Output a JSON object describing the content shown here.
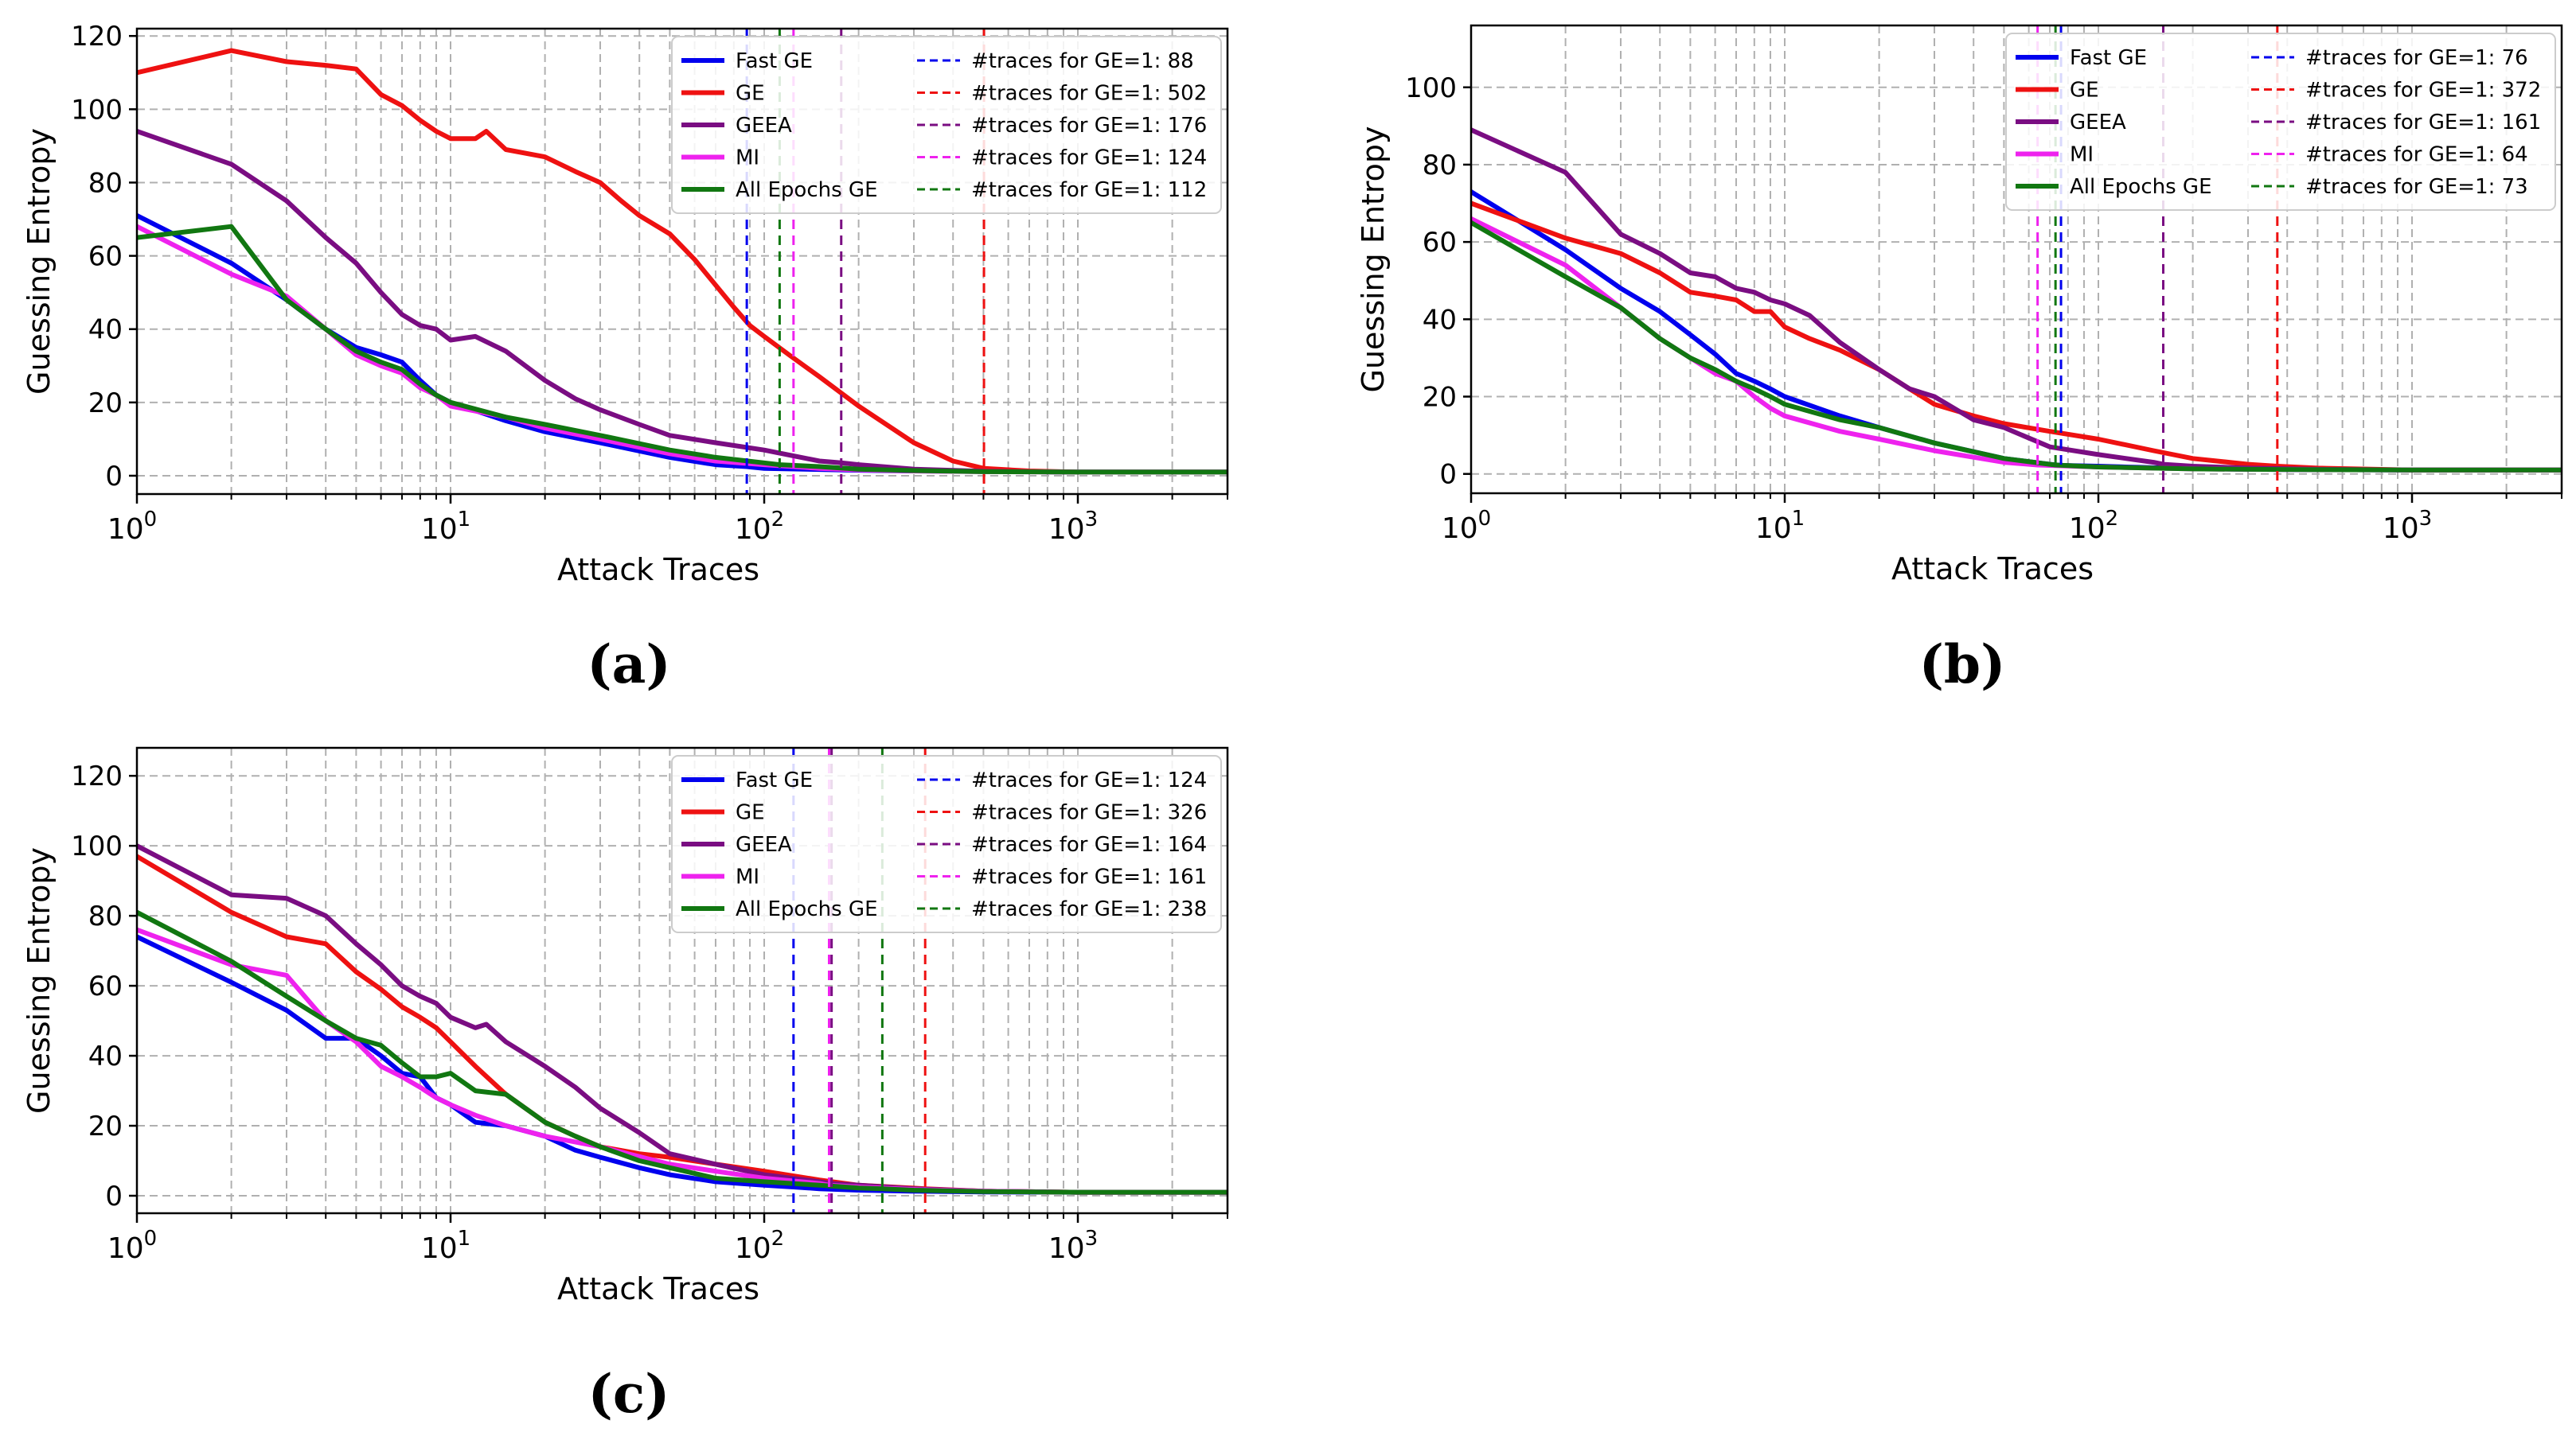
{
  "chart_data": [
    {
      "panel_label": "(a)",
      "type": "line",
      "xscale": "log",
      "xlim": [
        1,
        3000
      ],
      "ylim": [
        -5,
        122
      ],
      "xlabel": "Attack Traces",
      "ylabel": "Guessing Entropy",
      "yticks": [
        0,
        20,
        40,
        60,
        80,
        100,
        120
      ],
      "grid": true,
      "legend_position": "top-right",
      "series": [
        {
          "name": "Fast GE",
          "color": "#0000ee",
          "x": [
            1,
            2,
            3,
            4,
            5,
            6,
            7,
            8,
            9,
            10,
            15,
            20,
            30,
            50,
            70,
            88,
            100,
            150,
            200,
            300,
            500,
            1000,
            3000
          ],
          "y": [
            71,
            58,
            48,
            40,
            35,
            33,
            31,
            26,
            22,
            20,
            15,
            12,
            9,
            5,
            3,
            2.5,
            2,
            1.7,
            1.5,
            1.3,
            1.2,
            1,
            1
          ]
        },
        {
          "name": "GE",
          "color": "#ee1111",
          "x": [
            1,
            2,
            3,
            4,
            5,
            6,
            7,
            8,
            9,
            10,
            12,
            13,
            15,
            20,
            25,
            30,
            35,
            40,
            50,
            60,
            70,
            80,
            90,
            100,
            120,
            150,
            200,
            300,
            400,
            502,
            700,
            1000,
            3000
          ],
          "y": [
            110,
            116,
            113,
            112,
            111,
            104,
            101,
            97,
            94,
            92,
            92,
            94,
            89,
            87,
            83,
            80,
            75,
            71,
            66,
            59,
            52,
            46,
            41,
            38,
            33,
            27,
            19,
            9,
            4,
            2,
            1.3,
            1,
            1
          ]
        },
        {
          "name": "GEEA",
          "color": "#7a0d82",
          "x": [
            1,
            2,
            3,
            4,
            5,
            6,
            7,
            8,
            9,
            10,
            12,
            15,
            20,
            25,
            30,
            40,
            50,
            70,
            100,
            150,
            176,
            200,
            300,
            500,
            1000,
            3000
          ],
          "y": [
            94,
            85,
            75,
            65,
            58,
            50,
            44,
            41,
            40,
            37,
            38,
            34,
            26,
            21,
            18,
            14,
            11,
            9,
            7,
            4,
            3.5,
            3,
            1.8,
            1.2,
            1,
            1
          ]
        },
        {
          "name": "MI",
          "color": "#ee22ee",
          "x": [
            1,
            2,
            3,
            4,
            5,
            6,
            7,
            8,
            9,
            10,
            15,
            20,
            30,
            50,
            70,
            100,
            124,
            150,
            200,
            300,
            500,
            1000,
            3000
          ],
          "y": [
            68,
            55,
            49,
            40,
            33,
            30,
            28,
            24,
            22,
            19,
            16,
            13,
            10,
            6,
            4,
            3,
            2.5,
            2,
            1.6,
            1.3,
            1.1,
            1,
            1
          ]
        },
        {
          "name": "All Epochs GE",
          "color": "#117711",
          "x": [
            1,
            2,
            3,
            4,
            5,
            6,
            7,
            8,
            9,
            10,
            15,
            20,
            30,
            50,
            70,
            100,
            112,
            150,
            200,
            300,
            500,
            1000,
            3000
          ],
          "y": [
            65,
            68,
            48,
            40,
            34,
            31,
            29,
            25,
            22,
            20,
            16,
            14,
            11,
            7,
            5,
            3.5,
            3,
            2.5,
            1.8,
            1.4,
            1.1,
            1,
            1
          ]
        }
      ],
      "vlines": [
        {
          "label": "#traces for GE=1: 88",
          "x": 88,
          "color": "#0000ee"
        },
        {
          "label": "#traces for GE=1: 502",
          "x": 502,
          "color": "#ee1111"
        },
        {
          "label": "#traces for GE=1: 176",
          "x": 176,
          "color": "#7a0d82"
        },
        {
          "label": "#traces for GE=1: 124",
          "x": 124,
          "color": "#ee22ee"
        },
        {
          "label": "#traces for GE=1: 112",
          "x": 112,
          "color": "#117711"
        }
      ]
    },
    {
      "panel_label": "(b)",
      "type": "line",
      "xscale": "log",
      "xlim": [
        1,
        3000
      ],
      "ylim": [
        -5,
        116
      ],
      "xlabel": "Attack Traces",
      "ylabel": "Guessing Entropy",
      "yticks": [
        0,
        20,
        40,
        60,
        80,
        100
      ],
      "grid": true,
      "legend_position": "top-right",
      "series": [
        {
          "name": "Fast GE",
          "color": "#0000ee",
          "x": [
            1,
            2,
            3,
            4,
            5,
            6,
            7,
            8,
            9,
            10,
            15,
            20,
            30,
            50,
            70,
            76,
            100,
            150,
            200,
            300,
            500,
            1000,
            3000
          ],
          "y": [
            73,
            58,
            48,
            42,
            36,
            31,
            26,
            24,
            22,
            20,
            15,
            12,
            8,
            4,
            2.5,
            2.2,
            2,
            1.6,
            1.4,
            1.2,
            1.1,
            1,
            1
          ]
        },
        {
          "name": "GE",
          "color": "#ee1111",
          "x": [
            1,
            2,
            3,
            4,
            5,
            6,
            7,
            8,
            9,
            10,
            12,
            15,
            20,
            25,
            30,
            40,
            50,
            70,
            100,
            150,
            200,
            300,
            372,
            500,
            1000,
            3000
          ],
          "y": [
            70,
            61,
            57,
            52,
            47,
            46,
            45,
            42,
            42,
            38,
            35,
            32,
            27,
            22,
            18,
            15,
            13,
            11,
            9,
            6,
            4,
            2.5,
            2,
            1.5,
            1,
            1
          ]
        },
        {
          "name": "GEEA",
          "color": "#7a0d82",
          "x": [
            1,
            2,
            3,
            4,
            5,
            6,
            7,
            8,
            9,
            10,
            12,
            15,
            20,
            25,
            30,
            40,
            50,
            70,
            100,
            150,
            161,
            200,
            300,
            500,
            1000,
            3000
          ],
          "y": [
            89,
            78,
            62,
            57,
            52,
            51,
            48,
            47,
            45,
            44,
            41,
            34,
            27,
            22,
            20,
            14,
            12,
            7,
            5,
            3,
            2.5,
            2,
            1.5,
            1.2,
            1,
            1
          ]
        },
        {
          "name": "MI",
          "color": "#ee22ee",
          "x": [
            1,
            2,
            3,
            4,
            5,
            6,
            7,
            8,
            9,
            10,
            15,
            20,
            30,
            50,
            64,
            100,
            150,
            200,
            300,
            500,
            1000,
            3000
          ],
          "y": [
            66,
            54,
            43,
            35,
            30,
            26,
            24,
            20,
            17,
            15,
            11,
            9,
            6,
            3,
            2.3,
            1.8,
            1.5,
            1.3,
            1.2,
            1.1,
            1,
            1
          ]
        },
        {
          "name": "All Epochs GE",
          "color": "#117711",
          "x": [
            1,
            2,
            3,
            4,
            5,
            6,
            7,
            8,
            9,
            10,
            15,
            20,
            30,
            50,
            70,
            73,
            100,
            150,
            200,
            300,
            500,
            1000,
            3000
          ],
          "y": [
            65,
            51,
            43,
            35,
            30,
            27,
            24,
            22,
            20,
            18,
            14,
            12,
            8,
            4,
            2.5,
            2.3,
            1.8,
            1.5,
            1.3,
            1.2,
            1.1,
            1,
            1
          ]
        }
      ],
      "vlines": [
        {
          "label": "#traces for GE=1: 76",
          "x": 76,
          "color": "#0000ee"
        },
        {
          "label": "#traces for GE=1: 372",
          "x": 372,
          "color": "#ee1111"
        },
        {
          "label": "#traces for GE=1: 161",
          "x": 161,
          "color": "#7a0d82"
        },
        {
          "label": "#traces for GE=1: 64",
          "x": 64,
          "color": "#ee22ee"
        },
        {
          "label": "#traces for GE=1: 73",
          "x": 73,
          "color": "#117711"
        }
      ]
    },
    {
      "panel_label": "(c)",
      "type": "line",
      "xscale": "log",
      "xlim": [
        1,
        3000
      ],
      "ylim": [
        -5,
        128
      ],
      "xlabel": "Attack Traces",
      "ylabel": "Guessing Entropy",
      "yticks": [
        0,
        20,
        40,
        60,
        80,
        100,
        120
      ],
      "grid": true,
      "legend_position": "top-right",
      "series": [
        {
          "name": "Fast GE",
          "color": "#0000ee",
          "x": [
            1,
            2,
            3,
            4,
            5,
            6,
            7,
            8,
            9,
            10,
            12,
            15,
            20,
            25,
            30,
            40,
            50,
            70,
            100,
            124,
            150,
            200,
            300,
            500,
            1000,
            3000
          ],
          "y": [
            74,
            61,
            53,
            45,
            45,
            40,
            35,
            34,
            28,
            26,
            21,
            20,
            17,
            13,
            11,
            8,
            6,
            4,
            3,
            2.5,
            2,
            1.6,
            1.3,
            1.1,
            1,
            1
          ]
        },
        {
          "name": "GE",
          "color": "#ee1111",
          "x": [
            1,
            2,
            3,
            4,
            5,
            6,
            7,
            8,
            9,
            10,
            12,
            15,
            20,
            25,
            30,
            40,
            50,
            70,
            100,
            150,
            200,
            326,
            500,
            1000,
            3000
          ],
          "y": [
            97,
            81,
            74,
            72,
            64,
            59,
            54,
            51,
            48,
            44,
            37,
            29,
            21,
            17,
            14,
            12,
            11,
            9,
            7,
            4.5,
            3,
            2,
            1.3,
            1,
            1
          ]
        },
        {
          "name": "GEEA",
          "color": "#7a0d82",
          "x": [
            1,
            2,
            3,
            4,
            5,
            6,
            7,
            8,
            9,
            10,
            12,
            13,
            15,
            20,
            25,
            30,
            40,
            50,
            70,
            100,
            150,
            164,
            200,
            300,
            500,
            1000,
            3000
          ],
          "y": [
            100,
            86,
            85,
            80,
            72,
            66,
            60,
            57,
            55,
            51,
            48,
            49,
            44,
            37,
            31,
            25,
            18,
            12,
            9,
            6,
            4,
            3.5,
            3,
            2,
            1.3,
            1,
            1
          ]
        },
        {
          "name": "MI",
          "color": "#ee22ee",
          "x": [
            1,
            2,
            3,
            4,
            5,
            6,
            7,
            8,
            9,
            10,
            12,
            15,
            20,
            30,
            50,
            70,
            100,
            150,
            161,
            200,
            300,
            500,
            1000,
            3000
          ],
          "y": [
            76,
            66,
            63,
            50,
            44,
            37,
            34,
            31,
            28,
            26,
            23,
            20,
            17,
            14,
            9,
            7,
            5,
            3.5,
            3,
            2.5,
            1.8,
            1.3,
            1,
            1
          ]
        },
        {
          "name": "All Epochs GE",
          "color": "#117711",
          "x": [
            1,
            2,
            3,
            4,
            5,
            6,
            7,
            8,
            9,
            10,
            12,
            15,
            20,
            25,
            30,
            40,
            50,
            70,
            100,
            150,
            200,
            238,
            300,
            500,
            1000,
            3000
          ],
          "y": [
            81,
            67,
            57,
            50,
            45,
            43,
            38,
            34,
            34,
            35,
            30,
            29,
            21,
            17,
            14,
            10,
            8,
            5,
            4,
            3,
            2.2,
            2,
            1.6,
            1.2,
            1,
            1
          ]
        }
      ],
      "vlines": [
        {
          "label": "#traces for GE=1: 124",
          "x": 124,
          "color": "#0000ee"
        },
        {
          "label": "#traces for GE=1: 326",
          "x": 326,
          "color": "#ee1111"
        },
        {
          "label": "#traces for GE=1: 164",
          "x": 164,
          "color": "#7a0d82"
        },
        {
          "label": "#traces for GE=1: 161",
          "x": 161,
          "color": "#ee22ee"
        },
        {
          "label": "#traces for GE=1: 238",
          "x": 238,
          "color": "#117711"
        }
      ]
    }
  ]
}
